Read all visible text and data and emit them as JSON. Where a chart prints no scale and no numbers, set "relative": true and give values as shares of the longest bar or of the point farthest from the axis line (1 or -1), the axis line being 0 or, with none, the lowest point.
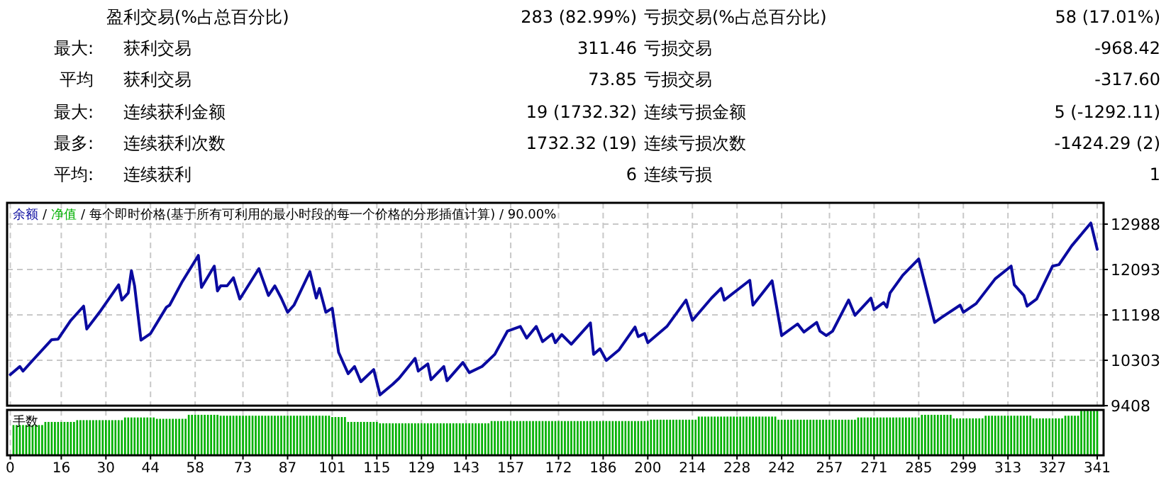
{
  "chart_data": [
    {
      "type": "other",
      "annotations": [
        "盈利交易(%占总百分比)",
        "283 (82.99%)",
        "亏损交易(%占总百分比)",
        "58 (17.01%)",
        "最大:",
        "获利交易",
        "311.46",
        "亏损交易",
        "-968.42",
        "平均",
        "获利交易",
        "73.85",
        "亏损交易",
        "-317.60",
        "最大:",
        "连续获利金额",
        "19 (1732.32)",
        "连续亏损金额",
        "5 (-1292.11)",
        "最多:",
        "连续获利次数",
        "1732.32 (19)",
        "连续亏损次数",
        "-1424.29 (2)",
        "平均:",
        "连续获利",
        "6",
        "连续亏损",
        "1"
      ]
    },
    {
      "type": "line",
      "title": "每个即时价格(基于所有可利用的最小时段的每一个价格的分形插值计算) / 90.00%",
      "legend": "top left",
      "legend_title": "/",
      "grid": true,
      "tick_labels": "y",
      "xlim": [
        -1,
        343
      ],
      "xticks": [
        0,
        16,
        30,
        44,
        58,
        73,
        87,
        101,
        115,
        129,
        143,
        157,
        172,
        186,
        200,
        214,
        228,
        242,
        257,
        271,
        285,
        299,
        313,
        327,
        341
      ],
      "ylim": [
        9408,
        13408
      ],
      "yticks": [
        9408,
        10303,
        11198,
        12093,
        12988
      ],
      "series": [
        {
          "name": "余额",
          "color": "#0a0aa0",
          "x": [
            0,
            3,
            4,
            7,
            13,
            15,
            19,
            23,
            24,
            28,
            34,
            35,
            37,
            38,
            39,
            41,
            44,
            49,
            50,
            54,
            59,
            60,
            64,
            65,
            66,
            68,
            70,
            72,
            78,
            81,
            83,
            85,
            87,
            89,
            94,
            96,
            97,
            99,
            101,
            103,
            106,
            108,
            110,
            114,
            116,
            120,
            122,
            127,
            128,
            131,
            132,
            136,
            137,
            142,
            144,
            148,
            152,
            156,
            160,
            162,
            165,
            167,
            170,
            171,
            173,
            176,
            182,
            183,
            185,
            187,
            191,
            196,
            197,
            199,
            200,
            206,
            212,
            214,
            220,
            223,
            224,
            232,
            233,
            239,
            242,
            247,
            249,
            253,
            254,
            256,
            258,
            263,
            265,
            270,
            271,
            274,
            275,
            276,
            280,
            285,
            290,
            292,
            298,
            299,
            303,
            309,
            314,
            315,
            318,
            319,
            322,
            327,
            329,
            333,
            339,
            341
          ],
          "values": [
            10020,
            10180,
            10090,
            10300,
            10710,
            10720,
            11090,
            11370,
            10920,
            11250,
            11790,
            11490,
            11630,
            12070,
            11770,
            10700,
            10830,
            11350,
            11390,
            11860,
            12370,
            11740,
            12160,
            11670,
            11770,
            11770,
            11930,
            11510,
            12110,
            11580,
            11770,
            11530,
            11250,
            11390,
            12050,
            11530,
            11720,
            11250,
            11330,
            10460,
            10040,
            10180,
            9880,
            10120,
            9620,
            9830,
            9950,
            10340,
            10090,
            10230,
            9920,
            10180,
            9900,
            10260,
            10060,
            10180,
            10420,
            10880,
            10970,
            10740,
            10970,
            10670,
            10820,
            10650,
            10810,
            10620,
            11040,
            10420,
            10530,
            10300,
            10510,
            10960,
            10770,
            10830,
            10650,
            10970,
            11490,
            11090,
            11530,
            11720,
            11490,
            11880,
            11390,
            11870,
            10790,
            11020,
            10860,
            11050,
            10880,
            10790,
            10880,
            11490,
            11190,
            11530,
            11300,
            11440,
            11350,
            11630,
            11980,
            12300,
            11050,
            11140,
            11390,
            11250,
            11420,
            11910,
            12160,
            11790,
            11580,
            11370,
            11510,
            12160,
            12190,
            12560,
            13010,
            12490
          ]
        },
        {
          "name": "净值",
          "color": "#00b000"
        }
      ]
    },
    {
      "type": "bar",
      "title": "手数",
      "relative": true,
      "grid": "x",
      "tick_labels": "x",
      "xlim": [
        -1,
        343
      ],
      "xticks": [
        0,
        16,
        30,
        44,
        58,
        73,
        87,
        101,
        115,
        129,
        143,
        157,
        172,
        186,
        200,
        214,
        228,
        242,
        257,
        271,
        285,
        299,
        313,
        327,
        341
      ],
      "series": [
        {
          "color": "#00b000",
          "x": [
            1,
            2,
            3,
            4,
            5,
            6,
            7,
            8,
            9,
            10,
            11,
            12,
            13,
            14,
            15,
            16,
            17,
            18,
            19,
            20,
            21,
            22,
            23,
            24,
            25,
            26,
            27,
            28,
            29,
            30,
            31,
            32,
            33,
            34,
            35,
            36,
            37,
            38,
            39,
            40,
            41,
            42,
            43,
            44,
            45,
            46,
            47,
            48,
            49,
            50,
            51,
            52,
            53,
            54,
            55,
            56,
            57,
            58,
            59,
            60,
            61,
            62,
            63,
            64,
            65,
            66,
            67,
            68,
            69,
            70,
            71,
            72,
            73,
            74,
            75,
            76,
            77,
            78,
            79,
            80,
            81,
            82,
            83,
            84,
            85,
            86,
            87,
            88,
            89,
            90,
            91,
            92,
            93,
            94,
            95,
            96,
            97,
            98,
            99,
            100,
            101,
            102,
            103,
            104,
            105,
            106,
            107,
            108,
            109,
            110,
            111,
            112,
            113,
            114,
            115,
            116,
            117,
            118,
            119,
            120,
            121,
            122,
            123,
            124,
            125,
            126,
            127,
            128,
            129,
            130,
            131,
            132,
            133,
            134,
            135,
            136,
            137,
            138,
            139,
            140,
            141,
            142,
            143,
            144,
            145,
            146,
            147,
            148,
            149,
            150,
            151,
            152,
            153,
            154,
            155,
            156,
            157,
            158,
            159,
            160,
            161,
            162,
            163,
            164,
            165,
            166,
            167,
            168,
            169,
            170,
            171,
            172,
            173,
            174,
            175,
            176,
            177,
            178,
            179,
            180,
            181,
            182,
            183,
            184,
            185,
            186,
            187,
            188,
            189,
            190,
            191,
            192,
            193,
            194,
            195,
            196,
            197,
            198,
            199,
            200,
            201,
            202,
            203,
            204,
            205,
            206,
            207,
            208,
            209,
            210,
            211,
            212,
            213,
            214,
            215,
            216,
            217,
            218,
            219,
            220,
            221,
            222,
            223,
            224,
            225,
            226,
            227,
            228,
            229,
            230,
            231,
            232,
            233,
            234,
            235,
            236,
            237,
            238,
            239,
            240,
            241,
            242,
            243,
            244,
            245,
            246,
            247,
            248,
            249,
            250,
            251,
            252,
            253,
            254,
            255,
            256,
            257,
            258,
            259,
            260,
            261,
            262,
            263,
            264,
            265,
            266,
            267,
            268,
            269,
            270,
            271,
            272,
            273,
            274,
            275,
            276,
            277,
            278,
            279,
            280,
            281,
            282,
            283,
            284,
            285,
            286,
            287,
            288,
            289,
            290,
            291,
            292,
            293,
            294,
            295,
            296,
            297,
            298,
            299,
            300,
            301,
            302,
            303,
            304,
            305,
            306,
            307,
            308,
            309,
            310,
            311,
            312,
            313,
            314,
            315,
            316,
            317,
            318,
            319,
            320,
            321,
            322,
            323,
            324,
            325,
            326,
            327,
            328,
            329,
            330,
            331,
            332,
            333,
            334,
            335,
            336,
            337,
            338,
            339,
            340,
            341
          ],
          "values": [
            0.68,
            0.68,
            0.68,
            0.68,
            0.68,
            0.68,
            0.68,
            0.68,
            0.68,
            0.68,
            0.75,
            0.75,
            0.75,
            0.75,
            0.75,
            0.75,
            0.75,
            0.75,
            0.75,
            0.75,
            0.79,
            0.79,
            0.79,
            0.79,
            0.79,
            0.79,
            0.79,
            0.79,
            0.79,
            0.79,
            0.79,
            0.79,
            0.79,
            0.79,
            0.79,
            0.85,
            0.85,
            0.85,
            0.85,
            0.85,
            0.85,
            0.85,
            0.85,
            0.85,
            0.85,
            0.82,
            0.82,
            0.82,
            0.82,
            0.82,
            0.82,
            0.82,
            0.82,
            0.82,
            0.82,
            0.91,
            0.91,
            0.91,
            0.91,
            0.91,
            0.91,
            0.91,
            0.91,
            0.91,
            0.91,
            0.89,
            0.89,
            0.89,
            0.89,
            0.89,
            0.89,
            0.89,
            0.89,
            0.89,
            0.89,
            0.89,
            0.89,
            0.89,
            0.89,
            0.89,
            0.89,
            0.89,
            0.89,
            0.89,
            0.89,
            0.89,
            0.89,
            0.89,
            0.89,
            0.89,
            0.89,
            0.89,
            0.89,
            0.89,
            0.89,
            0.89,
            0.89,
            0.89,
            0.89,
            0.89,
            0.86,
            0.86,
            0.86,
            0.86,
            0.86,
            0.75,
            0.75,
            0.75,
            0.75,
            0.75,
            0.75,
            0.75,
            0.75,
            0.75,
            0.75,
            0.72,
            0.72,
            0.72,
            0.72,
            0.72,
            0.72,
            0.72,
            0.72,
            0.72,
            0.72,
            0.72,
            0.72,
            0.72,
            0.72,
            0.72,
            0.72,
            0.72,
            0.72,
            0.72,
            0.72,
            0.72,
            0.72,
            0.72,
            0.72,
            0.72,
            0.72,
            0.72,
            0.72,
            0.72,
            0.72,
            0.72,
            0.72,
            0.72,
            0.72,
            0.72,
            0.77,
            0.77,
            0.77,
            0.77,
            0.77,
            0.77,
            0.77,
            0.77,
            0.77,
            0.77,
            0.77,
            0.77,
            0.77,
            0.77,
            0.77,
            0.77,
            0.77,
            0.77,
            0.77,
            0.77,
            0.77,
            0.77,
            0.77,
            0.77,
            0.77,
            0.77,
            0.77,
            0.77,
            0.77,
            0.77,
            0.77,
            0.77,
            0.77,
            0.77,
            0.77,
            0.77,
            0.77,
            0.77,
            0.77,
            0.77,
            0.77,
            0.77,
            0.77,
            0.77,
            0.77,
            0.77,
            0.77,
            0.77,
            0.77,
            0.77,
            0.8,
            0.8,
            0.8,
            0.8,
            0.8,
            0.8,
            0.8,
            0.8,
            0.8,
            0.8,
            0.8,
            0.8,
            0.8,
            0.8,
            0.8,
            0.87,
            0.87,
            0.87,
            0.87,
            0.87,
            0.87,
            0.87,
            0.87,
            0.87,
            0.87,
            0.87,
            0.87,
            0.87,
            0.87,
            0.87,
            0.87,
            0.87,
            0.87,
            0.87,
            0.87,
            0.87,
            0.87,
            0.87,
            0.87,
            0.87,
            0.8,
            0.8,
            0.8,
            0.8,
            0.8,
            0.8,
            0.8,
            0.8,
            0.8,
            0.8,
            0.8,
            0.8,
            0.8,
            0.8,
            0.8,
            0.8,
            0.8,
            0.8,
            0.8,
            0.8,
            0.8,
            0.8,
            0.8,
            0.8,
            0.8,
            0.85,
            0.85,
            0.85,
            0.85,
            0.85,
            0.85,
            0.85,
            0.85,
            0.85,
            0.85,
            0.85,
            0.85,
            0.85,
            0.85,
            0.85,
            0.85,
            0.85,
            0.85,
            0.85,
            0.85,
            0.91,
            0.91,
            0.91,
            0.91,
            0.91,
            0.91,
            0.91,
            0.91,
            0.91,
            0.91,
            0.83,
            0.83,
            0.83,
            0.83,
            0.83,
            0.83,
            0.83,
            0.83,
            0.83,
            0.83,
            0.89,
            0.89,
            0.89,
            0.89,
            0.89,
            0.89,
            0.89,
            0.89,
            0.89,
            0.89,
            0.89,
            0.89,
            0.89,
            0.89,
            0.89,
            0.83,
            0.83,
            0.83,
            0.83,
            0.83,
            0.83,
            0.83,
            0.83,
            0.83,
            0.83,
            0.89,
            0.89,
            0.89,
            0.89,
            0.89,
            1,
            1,
            1,
            1,
            1,
            1
          ]
        }
      ]
    }
  ]
}
